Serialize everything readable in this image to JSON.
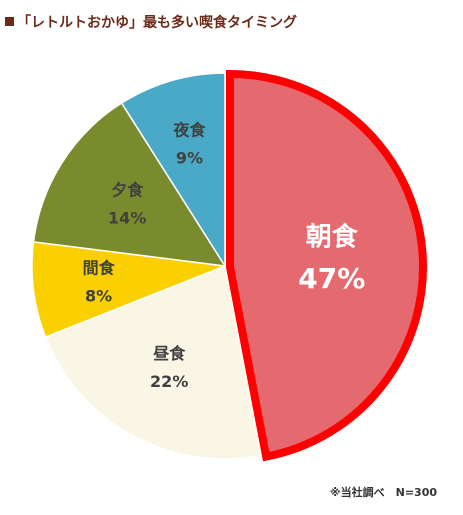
{
  "title": "「レトルトおかゆ」最も多い喫食タイミング",
  "footnote": "※当社調べ　N=300",
  "chart_data": {
    "type": "pie",
    "title": "「レトルトおかゆ」最も多い喫食タイミング",
    "slices": [
      {
        "label": "朝食",
        "value": 47,
        "display": "47%",
        "color": "#e56a6f",
        "text_color": "#ffffff",
        "highlighted": true
      },
      {
        "label": "昼食",
        "value": 22,
        "display": "22%",
        "color": "#faf6e6",
        "text_color": "#404040"
      },
      {
        "label": "間食",
        "value": 8,
        "display": "8%",
        "color": "#fbd000",
        "text_color": "#404040"
      },
      {
        "label": "夕食",
        "value": 14,
        "display": "14%",
        "color": "#7a8b2e",
        "text_color": "#404040"
      },
      {
        "label": "夜食",
        "value": 9,
        "display": "9%",
        "color": "#4aa9c6",
        "text_color": "#404040"
      }
    ],
    "start": "12 o'clock",
    "direction": "clockwise",
    "highlight_outline_color": "#ff0000",
    "legend": "none"
  }
}
